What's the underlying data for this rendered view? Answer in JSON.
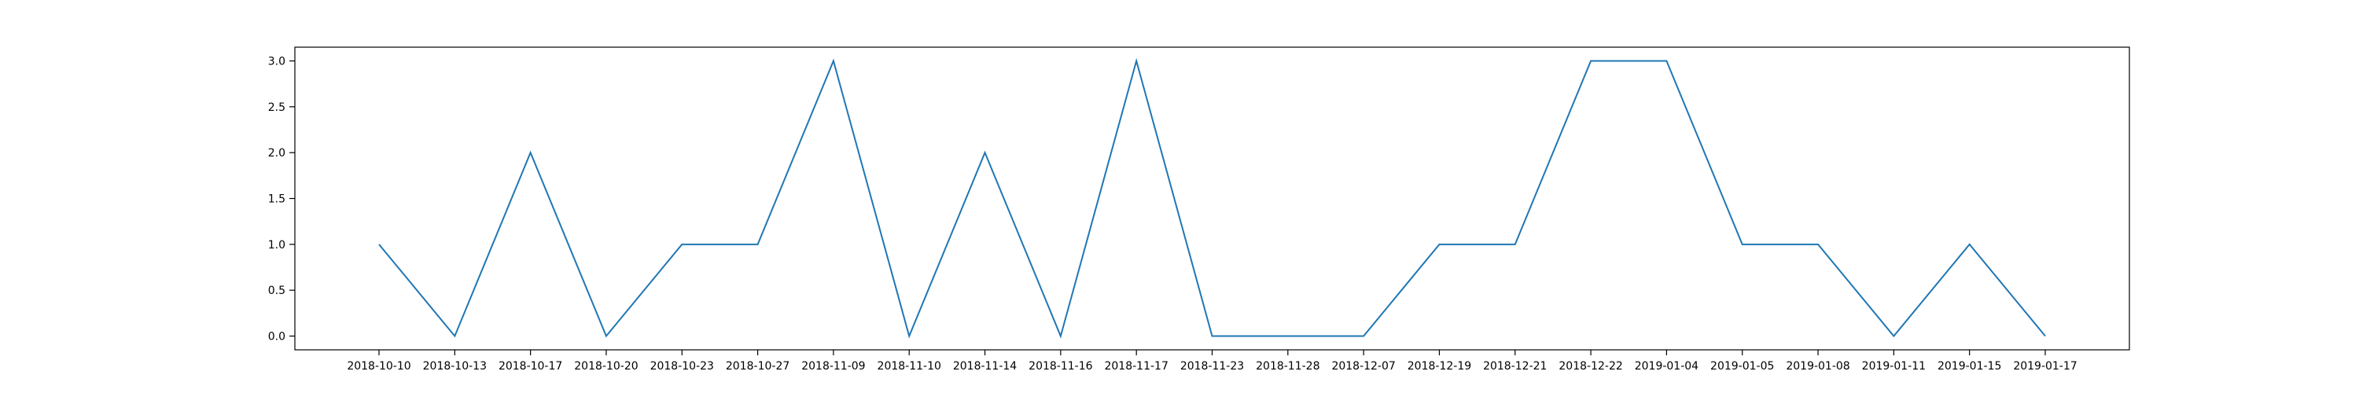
{
  "chart_data": {
    "type": "line",
    "categories": [
      "2018-10-10",
      "2018-10-13",
      "2018-10-17",
      "2018-10-20",
      "2018-10-23",
      "2018-10-27",
      "2018-11-09",
      "2018-11-10",
      "2018-11-14",
      "2018-11-16",
      "2018-11-17",
      "2018-11-23",
      "2018-11-28",
      "2018-12-07",
      "2018-12-19",
      "2018-12-21",
      "2018-12-22",
      "2019-01-04",
      "2019-01-05",
      "2019-01-08",
      "2019-01-11",
      "2019-01-15",
      "2019-01-17"
    ],
    "series": [
      {
        "values": [
          1,
          0,
          2,
          0,
          1,
          1,
          3,
          0,
          2,
          0,
          3,
          0,
          0,
          0,
          1,
          1,
          3,
          3,
          1,
          1,
          0,
          1,
          0
        ],
        "color": "#1f77b4"
      }
    ],
    "yticks": [
      "0.0",
      "0.5",
      "1.0",
      "1.5",
      "2.0",
      "2.5",
      "3.0"
    ],
    "ylim": [
      -0.15,
      3.15
    ],
    "grid": false,
    "legend": "none"
  }
}
